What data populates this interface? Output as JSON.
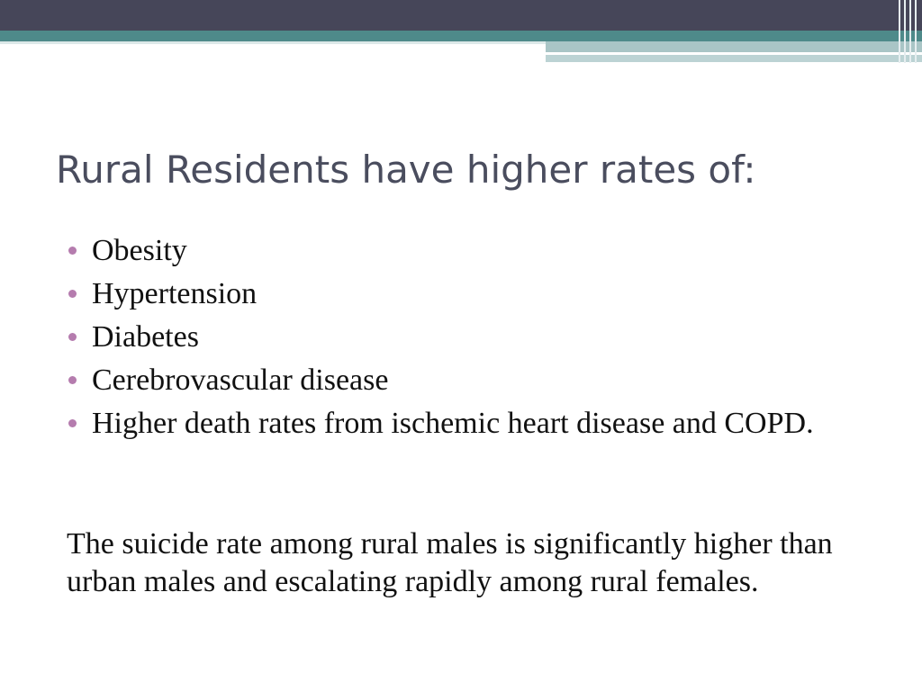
{
  "slide": {
    "title": "Rural Residents have higher rates of:",
    "bullets": [
      "Obesity",
      "Hypertension",
      "Diabetes",
      "Cerebrovascular disease",
      "Higher death rates from ischemic heart disease and COPD."
    ],
    "paragraph": "The suicide rate among rural males is significantly higher than urban males and escalating rapidly among rural females."
  },
  "theme": {
    "header_dark": "#464659",
    "header_teal": "#4e8a8a",
    "title_color": "#4a4d5e",
    "bullet_color": "#b57cae"
  }
}
